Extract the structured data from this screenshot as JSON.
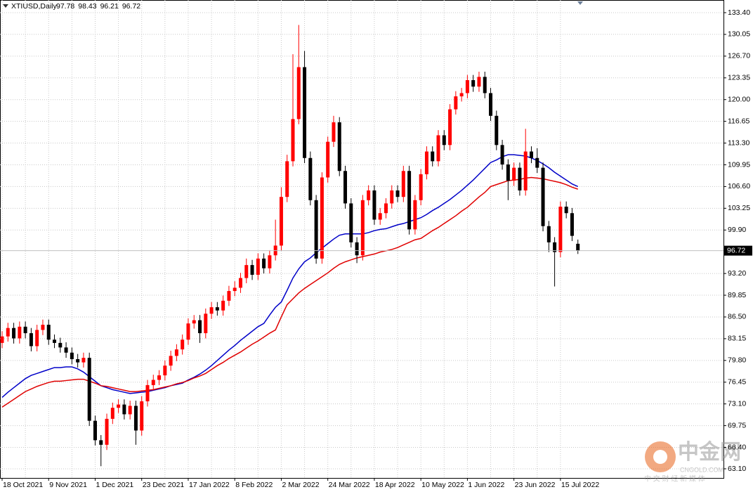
{
  "chart_data": {
    "type": "candlestick",
    "title": "XTIUSD,Daily",
    "categories": [
      "18 Oct 2021",
      null,
      null,
      null,
      null,
      null,
      null,
      null,
      "9 Nov 2021",
      null,
      null,
      null,
      null,
      null,
      null,
      null,
      "1 Dec 2021",
      null,
      null,
      null,
      null,
      null,
      null,
      null,
      "23 Dec 2021",
      null,
      null,
      null,
      null,
      null,
      null,
      null,
      "17 Jan 2022",
      null,
      null,
      null,
      null,
      null,
      null,
      null,
      "8 Feb 2022",
      null,
      null,
      null,
      null,
      null,
      null,
      null,
      "2 Mar 2022",
      null,
      null,
      null,
      null,
      null,
      null,
      null,
      "24 Mar 2022",
      null,
      null,
      null,
      null,
      null,
      null,
      null,
      "18 Apr 2022",
      null,
      null,
      null,
      null,
      null,
      null,
      null,
      "10 May 2022",
      null,
      null,
      null,
      null,
      null,
      null,
      null,
      "1 Jun 2022",
      null,
      null,
      null,
      null,
      null,
      null,
      null,
      "23 Jun 2022",
      null,
      null,
      null,
      null,
      null,
      null,
      null,
      "15 Jul 2022",
      null,
      null,
      null
    ],
    "open": [
      82.5,
      83.5,
      84.8,
      83.2,
      85.0,
      84.0,
      82.0,
      84.5,
      85.3,
      83.0,
      82.5,
      81.8,
      81.0,
      80.0,
      79.5,
      80.2,
      70.5,
      67.5,
      66.8,
      70.8,
      72.5,
      73.0,
      71.5,
      72.8,
      69.0,
      73.5,
      76.0,
      76.8,
      77.5,
      79.0,
      80.5,
      81.5,
      83.0,
      85.5,
      86.0,
      84.0,
      87.0,
      88.0,
      87.5,
      89.0,
      90.5,
      91.0,
      92.5,
      94.5,
      93.0,
      95.5,
      94.0,
      96.0,
      97.5,
      105.0,
      110.5,
      117.0,
      125.0,
      111.0,
      104.5,
      95.5,
      108.0,
      113.5,
      116.5,
      109.0,
      104.0,
      98.0,
      96.0,
      104.5,
      106.0,
      101.5,
      102.5,
      104.0,
      106.0,
      105.0,
      109.0,
      100.0,
      104.5,
      108.5,
      112.0,
      110.5,
      114.5,
      113.0,
      118.5,
      120.5,
      121.0,
      123.0,
      122.0,
      123.5,
      121.0,
      117.5,
      113.0,
      110.0,
      107.5,
      109.5,
      106.0,
      112.0,
      111.0,
      109.5,
      100.5,
      98.0,
      96.5,
      103.5,
      102.5,
      97.78
    ],
    "high": [
      84.3,
      85.6,
      85.6,
      85.8,
      85.8,
      84.8,
      85.3,
      86.1,
      86.1,
      83.8,
      83.3,
      82.6,
      81.8,
      80.8,
      81.0,
      81.0,
      71.3,
      68.3,
      71.6,
      73.3,
      73.8,
      73.8,
      73.6,
      73.6,
      74.3,
      76.8,
      77.6,
      78.3,
      79.8,
      81.3,
      82.3,
      83.8,
      86.3,
      86.8,
      86.8,
      87.8,
      88.8,
      88.8,
      89.8,
      91.3,
      92.0,
      93.3,
      95.5,
      95.3,
      96.3,
      96.3,
      96.8,
      101.5,
      106.5,
      111.5,
      127.0,
      131.5,
      127.5,
      112.0,
      105.3,
      108.8,
      114.3,
      117.5,
      117.3,
      109.8,
      104.8,
      98.8,
      105.3,
      106.8,
      106.8,
      103.3,
      104.8,
      106.8,
      106.8,
      109.8,
      109.8,
      105.3,
      109.3,
      112.8,
      112.8,
      115.3,
      115.3,
      119.3,
      121.3,
      121.8,
      123.8,
      123.8,
      124.3,
      124.3,
      121.8,
      118.3,
      113.8,
      110.8,
      110.3,
      110.3,
      115.5,
      112.8,
      112.5,
      110.3,
      101.3,
      98.8,
      104.3,
      104.3,
      103.3,
      98.43
    ],
    "low": [
      81.7,
      82.7,
      82.4,
      82.4,
      83.2,
      81.2,
      81.2,
      83.7,
      82.2,
      81.7,
      81.0,
      80.2,
      79.2,
      78.7,
      78.7,
      69.7,
      66.7,
      63.5,
      66.0,
      70.0,
      71.7,
      70.7,
      70.7,
      66.8,
      68.2,
      72.7,
      75.2,
      76.0,
      76.7,
      78.2,
      79.7,
      80.7,
      82.2,
      84.7,
      82.5,
      83.2,
      86.2,
      86.7,
      86.7,
      88.2,
      89.7,
      90.2,
      91.7,
      92.2,
      92.2,
      93.2,
      93.2,
      95.2,
      96.7,
      104.2,
      109.7,
      116.2,
      110.2,
      103.7,
      94.7,
      94.7,
      107.2,
      112.7,
      108.2,
      103.2,
      97.2,
      94.8,
      95.2,
      103.7,
      100.7,
      100.7,
      101.7,
      103.2,
      104.2,
      104.2,
      99.2,
      99.2,
      103.7,
      107.7,
      109.7,
      109.7,
      112.2,
      112.2,
      117.7,
      119.7,
      120.2,
      121.2,
      121.2,
      120.2,
      116.7,
      112.2,
      109.2,
      104.5,
      106.7,
      105.2,
      105.2,
      110.2,
      108.7,
      99.7,
      96.5,
      91.2,
      95.7,
      101.7,
      98.2,
      96.21
    ],
    "close": [
      83.5,
      84.8,
      83.2,
      85.0,
      84.0,
      82.0,
      84.5,
      85.3,
      83.0,
      82.5,
      81.8,
      81.0,
      80.0,
      79.5,
      80.2,
      70.5,
      67.5,
      66.8,
      70.8,
      72.5,
      73.0,
      71.5,
      72.8,
      69.0,
      73.5,
      76.0,
      76.8,
      77.5,
      79.0,
      80.5,
      81.5,
      83.0,
      85.5,
      86.0,
      84.0,
      87.0,
      88.0,
      87.5,
      89.0,
      90.5,
      91.0,
      92.5,
      94.5,
      93.0,
      95.5,
      94.0,
      96.0,
      97.5,
      105.0,
      110.5,
      117.0,
      125.0,
      111.0,
      104.5,
      95.5,
      108.0,
      113.5,
      116.5,
      109.0,
      104.0,
      98.0,
      96.0,
      104.5,
      106.0,
      101.5,
      102.5,
      104.0,
      106.0,
      105.0,
      109.0,
      100.0,
      104.5,
      108.5,
      112.0,
      110.5,
      114.5,
      113.0,
      118.5,
      120.5,
      121.0,
      123.0,
      122.0,
      123.5,
      121.0,
      117.5,
      113.0,
      110.0,
      107.5,
      109.5,
      106.0,
      112.0,
      111.0,
      109.5,
      100.5,
      98.0,
      96.5,
      103.5,
      102.5,
      99.0,
      96.72
    ],
    "up_color": "#ff0000",
    "down_color": "#000000",
    "series": [
      {
        "type": "line",
        "color": "#0000c8",
        "values": [
          74.1,
          74.9,
          75.6,
          76.3,
          77.0,
          77.5,
          77.8,
          78.1,
          78.4,
          78.7,
          78.7,
          78.8,
          78.8,
          78.5,
          78.0,
          77.3,
          76.6,
          75.9,
          75.6,
          75.3,
          75.1,
          74.9,
          74.7,
          74.8,
          74.9,
          75.0,
          75.2,
          75.4,
          75.6,
          75.9,
          76.1,
          76.3,
          76.8,
          77.2,
          77.7,
          78.3,
          79.0,
          79.8,
          80.6,
          81.4,
          82.1,
          82.9,
          83.6,
          84.3,
          85.0,
          85.5,
          86.8,
          88.0,
          88.8,
          90.6,
          92.5,
          93.9,
          95.0,
          95.6,
          96.4,
          97.1,
          97.8,
          98.5,
          99.1,
          99.3,
          99.3,
          99.3,
          99.3,
          99.5,
          99.8,
          100.0,
          100.1,
          100.4,
          100.7,
          100.9,
          101.2,
          101.5,
          101.8,
          102.3,
          102.9,
          103.4,
          104.0,
          104.6,
          105.3,
          106.0,
          106.8,
          107.6,
          108.5,
          109.4,
          110.3,
          110.7,
          111.2,
          111.5,
          111.5,
          111.4,
          111.3,
          111.0,
          110.6,
          110.1,
          109.5,
          108.8,
          108.2,
          107.6,
          107.0,
          106.6
        ]
      },
      {
        "type": "line",
        "color": "#e00000",
        "values": [
          72.6,
          73.2,
          73.8,
          74.4,
          75.0,
          75.4,
          75.8,
          76.1,
          76.4,
          76.6,
          76.6,
          76.7,
          76.8,
          76.9,
          76.9,
          76.6,
          76.3,
          75.9,
          75.8,
          75.6,
          75.4,
          75.2,
          75.0,
          75.0,
          75.1,
          75.2,
          75.3,
          75.5,
          75.7,
          75.9,
          76.2,
          76.4,
          76.7,
          77.1,
          77.4,
          77.8,
          78.4,
          79.0,
          79.5,
          80.1,
          80.6,
          81.1,
          81.7,
          82.3,
          82.8,
          83.4,
          84.0,
          84.5,
          86.5,
          88.4,
          89.3,
          90.2,
          90.9,
          91.5,
          92.1,
          92.7,
          93.3,
          94.0,
          94.6,
          95.0,
          95.3,
          95.6,
          95.8,
          96.0,
          96.2,
          96.5,
          96.7,
          96.9,
          97.2,
          97.6,
          98.0,
          98.4,
          98.6,
          99.2,
          99.8,
          100.3,
          100.9,
          101.5,
          102.1,
          102.8,
          103.4,
          104.2,
          105.0,
          105.7,
          106.6,
          106.9,
          107.2,
          107.5,
          107.6,
          107.7,
          107.9,
          108.0,
          107.9,
          107.8,
          107.6,
          107.4,
          107.2,
          106.9,
          106.5,
          106.2
        ]
      }
    ],
    "ylim": [
      61.69,
      135.35
    ],
    "yticks": [
      {
        "value": 133.4,
        "label": "133.40"
      },
      {
        "value": 130.05,
        "label": "130.05"
      },
      {
        "value": 126.7,
        "label": "126.70"
      },
      {
        "value": 123.35,
        "label": "123.35"
      },
      {
        "value": 120,
        "label": "120.00"
      },
      {
        "value": 116.65,
        "label": "116.65"
      },
      {
        "value": 113.3,
        "label": "113.30"
      },
      {
        "value": 109.95,
        "label": "109.95"
      },
      {
        "value": 106.6,
        "label": "106.60"
      },
      {
        "value": 103.25,
        "label": "103.25"
      },
      {
        "value": 99.9,
        "label": "99.90"
      },
      {
        "value": 93.2,
        "label": "93.20"
      },
      {
        "value": 89.85,
        "label": "89.85"
      },
      {
        "value": 86.5,
        "label": "86.50"
      },
      {
        "value": 83.15,
        "label": "83.15"
      },
      {
        "value": 79.8,
        "label": "79.80"
      },
      {
        "value": 76.45,
        "label": "76.45"
      },
      {
        "value": 73.1,
        "label": "73.10"
      },
      {
        "value": 69.75,
        "label": "69.75"
      },
      {
        "value": 66.4,
        "label": "66.40"
      },
      {
        "value": 63.1,
        "label": "63.10"
      }
    ],
    "grid": true,
    "watermark": {
      "brand": "中金网",
      "site": "CNGOLD.COM",
      "slogan": "中 文 财 经 新 媒 体"
    }
  }
}
